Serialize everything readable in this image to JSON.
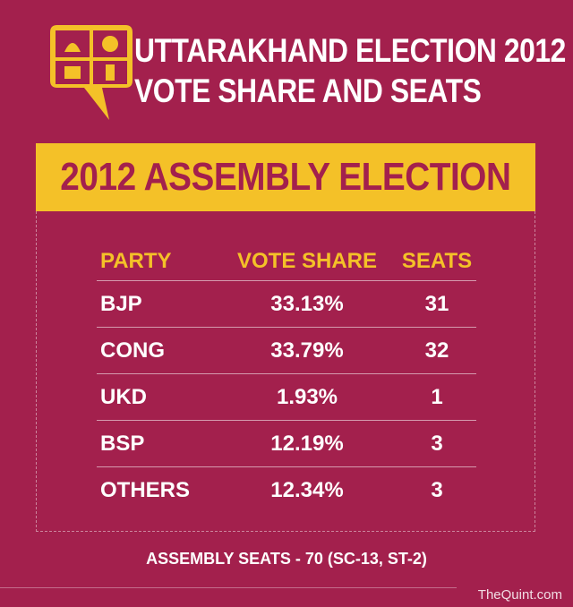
{
  "header": {
    "title_line1": "UTTARAKHAND ELECTION 2012",
    "title_line2": "VOTE SHARE AND SEATS"
  },
  "banner": {
    "label": "2012 ASSEMBLY ELECTION"
  },
  "table": {
    "columns": [
      "PARTY",
      "VOTE SHARE",
      "SEATS"
    ],
    "rows": [
      [
        "BJP",
        "33.13%",
        "31"
      ],
      [
        "CONG",
        "33.79%",
        "32"
      ],
      [
        "UKD",
        "1.93%",
        "1"
      ],
      [
        "BSP",
        "12.19%",
        "3"
      ],
      [
        "OTHERS",
        "12.34%",
        "3"
      ]
    ]
  },
  "footer": {
    "note": "ASSEMBLY SEATS - 70 (SC-13, ST-2)"
  },
  "brand": {
    "label": "TheQuint.com"
  },
  "colors": {
    "background": "#a3204d",
    "accent": "#f4c128",
    "text": "#ffffff"
  }
}
